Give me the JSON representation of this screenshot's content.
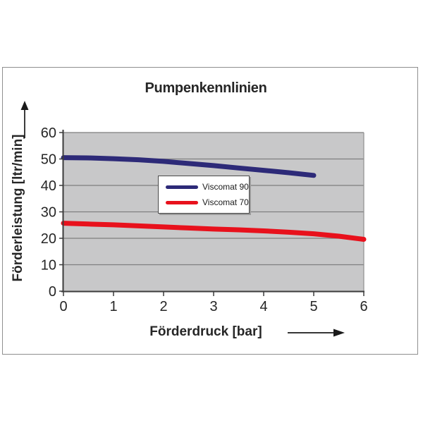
{
  "window": {
    "background": "#ffffff",
    "frame_border_color": "#8f8f8f"
  },
  "icons": {
    "y_axis_arrow": "up-arrow",
    "x_axis_arrow": "right-arrow"
  },
  "chart_data": {
    "type": "line",
    "title": "Pumpenkennlinien",
    "xlabel": "Förderdruck [bar]",
    "ylabel": "Förderleistung [ltr/min]",
    "xlim": [
      0,
      6
    ],
    "ylim": [
      0,
      60
    ],
    "x_ticks": [
      "0",
      "1",
      "2",
      "3",
      "4",
      "5",
      "6"
    ],
    "y_ticks": [
      "0",
      "10",
      "20",
      "30",
      "40",
      "50",
      "60"
    ],
    "grid": "horizontal",
    "legend_position": "inside-center",
    "colors": {
      "plot_background": "#c8c8c9",
      "gridline": "#7f7f7f",
      "axis": "#3c3c3c",
      "tick_text": "#262626",
      "plot_right_border": "#8f8f8f"
    },
    "series": [
      {
        "name": "Viscomat 90",
        "color": "#2d2a78",
        "x": [
          0,
          0.5,
          1,
          1.5,
          2,
          2.5,
          3,
          3.5,
          4,
          4.5,
          5
        ],
        "y": [
          50.5,
          50.4,
          50.1,
          49.7,
          49.1,
          48.3,
          47.5,
          46.6,
          45.7,
          44.8,
          43.8
        ]
      },
      {
        "name": "Viscomat 70",
        "color": "#e8111c",
        "x": [
          0,
          0.5,
          1,
          1.5,
          2,
          2.5,
          3,
          3.5,
          4,
          4.5,
          5,
          5.5,
          6
        ],
        "y": [
          25.7,
          25.4,
          25.1,
          24.7,
          24.3,
          23.9,
          23.5,
          23.2,
          22.8,
          22.3,
          21.7,
          20.8,
          19.6
        ]
      }
    ]
  }
}
